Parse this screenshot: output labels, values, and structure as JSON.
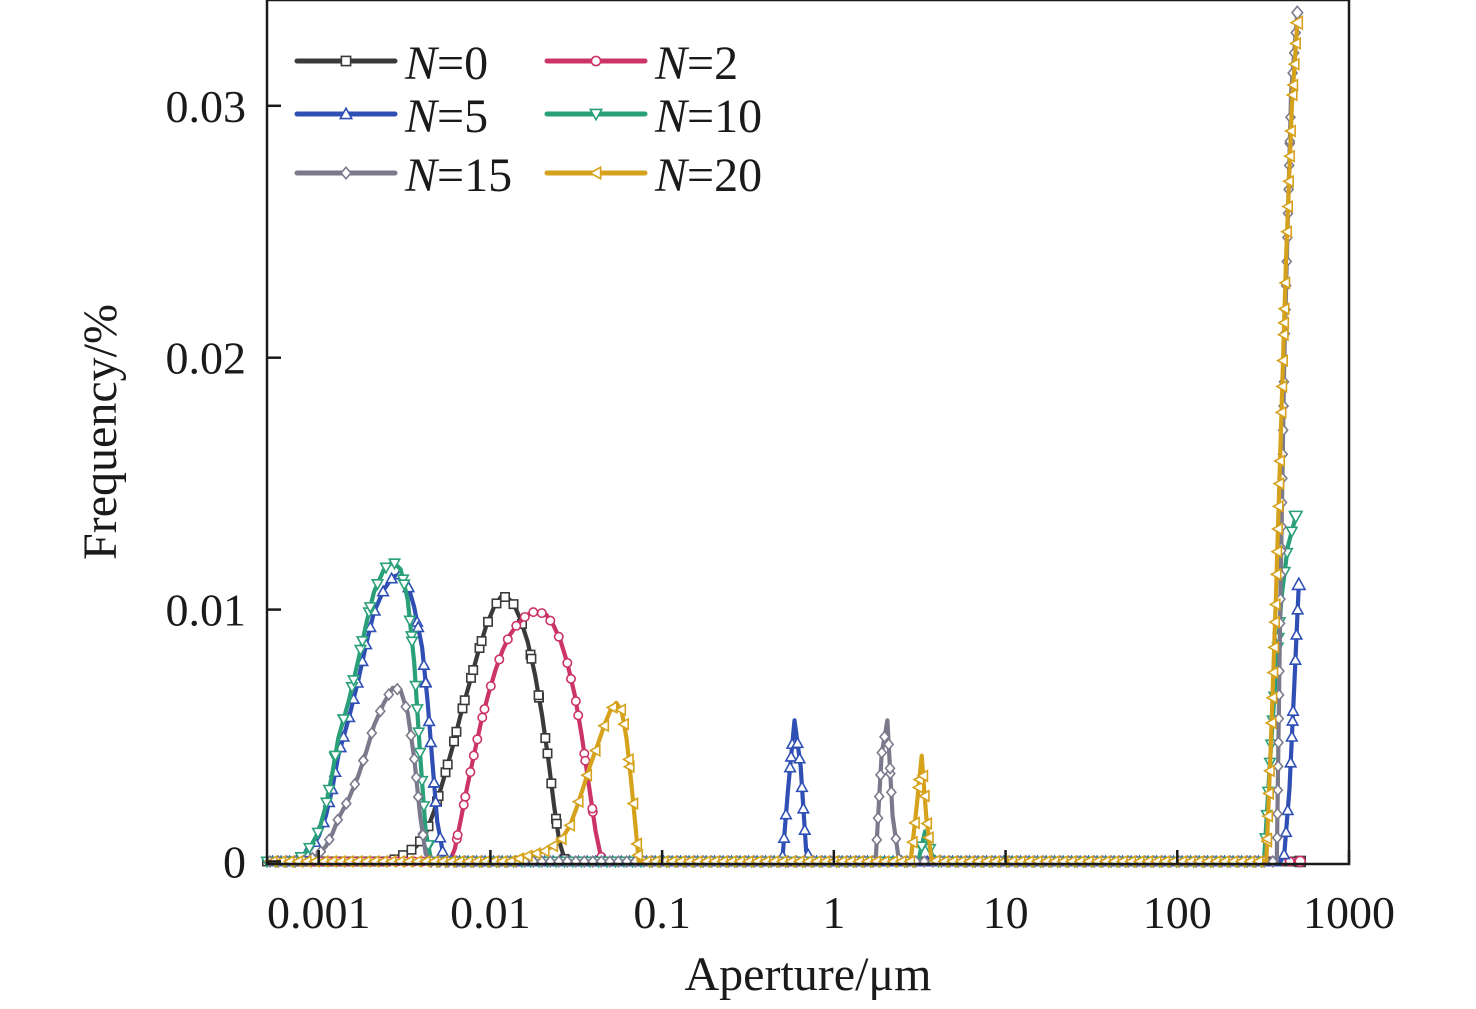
{
  "chart_data": {
    "type": "line",
    "title": "",
    "xlabel": "Aperture/μm",
    "ylabel": "Frequency/%",
    "x_scale": "log",
    "xlim": [
      0.0005,
      1000
    ],
    "ylim": [
      -0.0001,
      0.0342
    ],
    "x_ticks": [
      0.001,
      0.01,
      0.1,
      1,
      10,
      100,
      1000
    ],
    "x_tick_labels": [
      "0.001",
      "0.01",
      "0.1",
      "1",
      "10",
      "100",
      "1000"
    ],
    "y_ticks": [
      0,
      0.01,
      0.02,
      0.03
    ],
    "y_tick_labels": [
      "0",
      "0.01",
      "0.02",
      "0.03"
    ],
    "grid": false,
    "legend_position": "top-left",
    "series": [
      {
        "name": "N=0",
        "name_prefix": "N",
        "name_suffix": "=0",
        "color": "#3a3a3a",
        "marker": "square",
        "points": [
          [
            0.0005,
            0
          ],
          [
            0.0026,
            0
          ],
          [
            0.0028,
            0.0001
          ],
          [
            0.0032,
            0.0003
          ],
          [
            0.0037,
            0.0006
          ],
          [
            0.0042,
            0.0011
          ],
          [
            0.0047,
            0.002
          ],
          [
            0.0053,
            0.0032
          ],
          [
            0.006,
            0.0045
          ],
          [
            0.0067,
            0.0058
          ],
          [
            0.0075,
            0.007
          ],
          [
            0.0084,
            0.0082
          ],
          [
            0.0094,
            0.0093
          ],
          [
            0.0105,
            0.0101
          ],
          [
            0.0115,
            0.0105
          ],
          [
            0.0125,
            0.0105
          ],
          [
            0.0137,
            0.0102
          ],
          [
            0.015,
            0.0096
          ],
          [
            0.0165,
            0.0087
          ],
          [
            0.0182,
            0.0074
          ],
          [
            0.02,
            0.0058
          ],
          [
            0.0218,
            0.004
          ],
          [
            0.0235,
            0.0022
          ],
          [
            0.0252,
            0.0008
          ],
          [
            0.027,
            0.0001
          ],
          [
            0.03,
            0
          ],
          [
            520,
            0
          ]
        ]
      },
      {
        "name": "N=2",
        "name_prefix": "N",
        "name_suffix": "=2",
        "color": "#cc3366",
        "marker": "circle",
        "points": [
          [
            0.0005,
            0
          ],
          [
            0.0058,
            0
          ],
          [
            0.0062,
            0.0005
          ],
          [
            0.0067,
            0.0016
          ],
          [
            0.0073,
            0.0029
          ],
          [
            0.008,
            0.0042
          ],
          [
            0.0088,
            0.0055
          ],
          [
            0.0097,
            0.0066
          ],
          [
            0.0107,
            0.0076
          ],
          [
            0.0118,
            0.0084
          ],
          [
            0.013,
            0.009
          ],
          [
            0.0143,
            0.0094
          ],
          [
            0.0158,
            0.0097
          ],
          [
            0.0174,
            0.0099
          ],
          [
            0.0192,
            0.0099
          ],
          [
            0.0211,
            0.0098
          ],
          [
            0.0232,
            0.0094
          ],
          [
            0.0255,
            0.0088
          ],
          [
            0.028,
            0.0079
          ],
          [
            0.031,
            0.0066
          ],
          [
            0.034,
            0.005
          ],
          [
            0.0375,
            0.003
          ],
          [
            0.041,
            0.0012
          ],
          [
            0.044,
            0.0002
          ],
          [
            0.047,
            0
          ],
          [
            500,
            0
          ],
          [
            520,
            0
          ]
        ]
      },
      {
        "name": "N=5",
        "name_prefix": "N",
        "name_suffix": "=5",
        "color": "#2f4fb5",
        "marker": "triangle-up",
        "points": [
          [
            0.0005,
            0
          ],
          [
            0.0007,
            0
          ],
          [
            0.0008,
            0.0002
          ],
          [
            0.0009,
            0.0005
          ],
          [
            0.001,
            0.001
          ],
          [
            0.0011,
            0.0018
          ],
          [
            0.0012,
            0.0029
          ],
          [
            0.0013,
            0.0042
          ],
          [
            0.0015,
            0.0057
          ],
          [
            0.0017,
            0.0072
          ],
          [
            0.0019,
            0.0087
          ],
          [
            0.0021,
            0.0099
          ],
          [
            0.0024,
            0.0108
          ],
          [
            0.0027,
            0.0113
          ],
          [
            0.003,
            0.0114
          ],
          [
            0.0033,
            0.011
          ],
          [
            0.0036,
            0.0101
          ],
          [
            0.004,
            0.0085
          ],
          [
            0.0043,
            0.0064
          ],
          [
            0.0046,
            0.0039
          ],
          [
            0.0049,
            0.0016
          ],
          [
            0.0053,
            0.0003
          ],
          [
            0.006,
            0
          ],
          [
            0.5,
            0
          ],
          [
            0.54,
            0.0028
          ],
          [
            0.59,
            0.0056
          ],
          [
            0.64,
            0.0038
          ],
          [
            0.69,
            0.0004
          ],
          [
            0.75,
            0
          ],
          [
            400,
            0
          ],
          [
            420,
            0.0003
          ],
          [
            450,
            0.0029
          ],
          [
            480,
            0.007
          ],
          [
            510,
            0.011
          ]
        ]
      },
      {
        "name": "N=10",
        "name_prefix": "N",
        "name_suffix": "=10",
        "color": "#2aa07a",
        "marker": "triangle-down",
        "points": [
          [
            0.0005,
            0
          ],
          [
            0.0007,
            0
          ],
          [
            0.0008,
            0.0002
          ],
          [
            0.0009,
            0.0006
          ],
          [
            0.001,
            0.0012
          ],
          [
            0.0011,
            0.0022
          ],
          [
            0.0012,
            0.0035
          ],
          [
            0.0013,
            0.0049
          ],
          [
            0.0015,
            0.0064
          ],
          [
            0.0017,
            0.008
          ],
          [
            0.0019,
            0.0095
          ],
          [
            0.0021,
            0.0107
          ],
          [
            0.0024,
            0.0116
          ],
          [
            0.0027,
            0.0119
          ],
          [
            0.003,
            0.0116
          ],
          [
            0.0033,
            0.0104
          ],
          [
            0.0036,
            0.0079
          ],
          [
            0.0039,
            0.0042
          ],
          [
            0.0042,
            0.0012
          ],
          [
            0.0045,
            0.0001
          ],
          [
            0.0048,
            0
          ],
          [
            3.1,
            0
          ],
          [
            3.4,
            0.0012
          ],
          [
            3.7,
            0.0003
          ],
          [
            4,
            0
          ],
          [
            320,
            0
          ],
          [
            345,
            0.0037
          ],
          [
            375,
            0.0075
          ],
          [
            405,
            0.0105
          ],
          [
            440,
            0.0125
          ],
          [
            490,
            0.0137
          ]
        ]
      },
      {
        "name": "N=15",
        "name_prefix": "N",
        "name_suffix": "=15",
        "color": "#7a7a8c",
        "marker": "diamond",
        "points": [
          [
            0.0005,
            0
          ],
          [
            0.0008,
            0
          ],
          [
            0.0009,
            0.0001
          ],
          [
            0.001,
            0.0003
          ],
          [
            0.0011,
            0.0006
          ],
          [
            0.0012,
            0.0011
          ],
          [
            0.0013,
            0.0017
          ],
          [
            0.0015,
            0.0025
          ],
          [
            0.0017,
            0.0034
          ],
          [
            0.0019,
            0.0044
          ],
          [
            0.0021,
            0.0054
          ],
          [
            0.0024,
            0.0063
          ],
          [
            0.0027,
            0.0069
          ],
          [
            0.003,
            0.0068
          ],
          [
            0.0033,
            0.0059
          ],
          [
            0.0036,
            0.0041
          ],
          [
            0.0039,
            0.0018
          ],
          [
            0.0042,
            0.0003
          ],
          [
            0.0045,
            0
          ],
          [
            1.75,
            0
          ],
          [
            1.9,
            0.0043
          ],
          [
            2.05,
            0.0056
          ],
          [
            2.2,
            0.0018
          ],
          [
            2.4,
            0
          ],
          [
            380,
            0
          ],
          [
            395,
            0.0085
          ],
          [
            420,
            0.02
          ],
          [
            460,
            0.0305
          ],
          [
            500,
            0.0337
          ]
        ]
      },
      {
        "name": "N=20",
        "name_prefix": "N",
        "name_suffix": "=20",
        "color": "#d6a21c",
        "marker": "triangle-left",
        "points": [
          [
            0.0005,
            0
          ],
          [
            0.013,
            0
          ],
          [
            0.0145,
            0.0001
          ],
          [
            0.016,
            0.0002
          ],
          [
            0.018,
            0.0003
          ],
          [
            0.0205,
            0.0004
          ],
          [
            0.023,
            0.0006
          ],
          [
            0.026,
            0.0009
          ],
          [
            0.029,
            0.0014
          ],
          [
            0.032,
            0.0022
          ],
          [
            0.035,
            0.003
          ],
          [
            0.038,
            0.0038
          ],
          [
            0.042,
            0.0046
          ],
          [
            0.046,
            0.0054
          ],
          [
            0.05,
            0.006
          ],
          [
            0.054,
            0.0063
          ],
          [
            0.058,
            0.006
          ],
          [
            0.062,
            0.0049
          ],
          [
            0.066,
            0.0032
          ],
          [
            0.07,
            0.0014
          ],
          [
            0.073,
            0
          ],
          [
            2.8,
            0
          ],
          [
            3.05,
            0.0023
          ],
          [
            3.25,
            0.0042
          ],
          [
            3.45,
            0.0018
          ],
          [
            3.7,
            0.0001
          ],
          [
            4,
            0
          ],
          [
            330,
            0
          ],
          [
            350,
            0.0045
          ],
          [
            375,
            0.0105
          ],
          [
            400,
            0.0168
          ],
          [
            430,
            0.024
          ],
          [
            465,
            0.03
          ],
          [
            500,
            0.0333
          ]
        ]
      }
    ]
  }
}
